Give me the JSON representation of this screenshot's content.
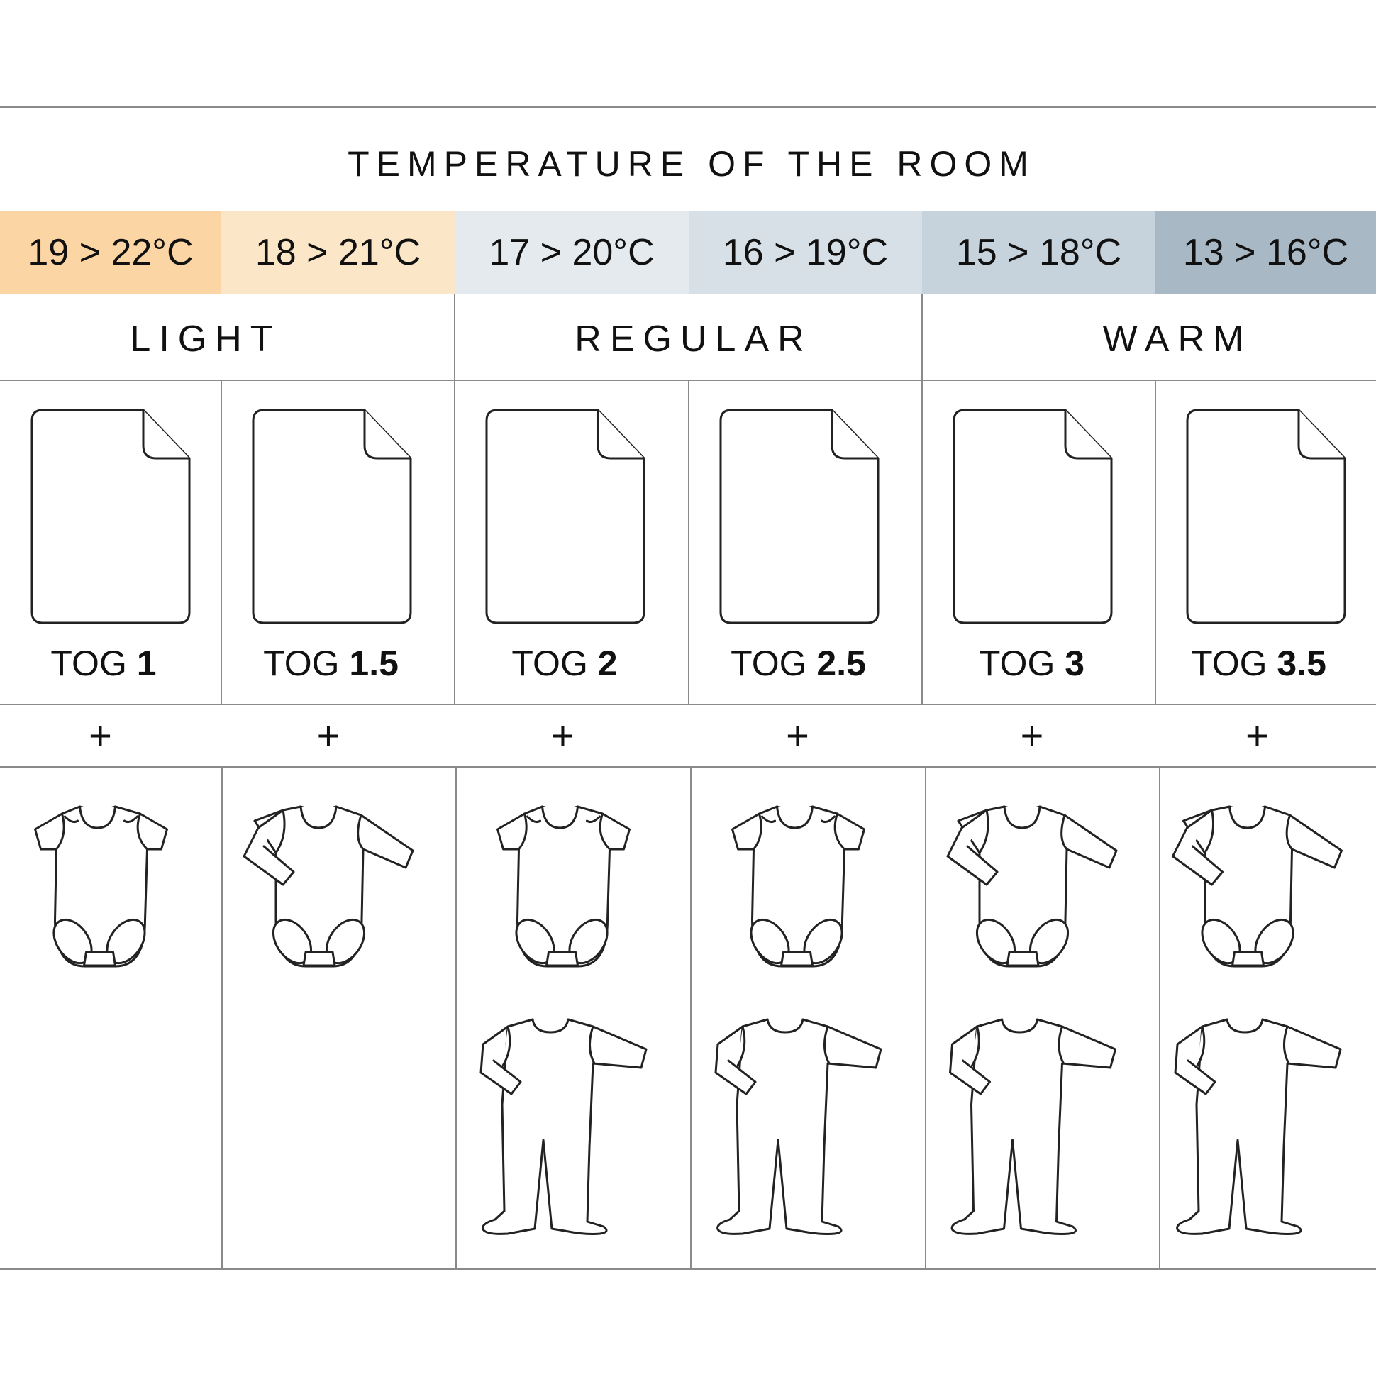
{
  "title": "TEMPERATURE OF THE ROOM",
  "temperature_bands": [
    {
      "label": "19 > 22°C",
      "color": "#fbd5a4"
    },
    {
      "label": "18 > 21°C",
      "color": "#fce6c8"
    },
    {
      "label": "17 > 20°C",
      "color": "#e5eaee"
    },
    {
      "label": "16 > 19°C",
      "color": "#d8e0e7"
    },
    {
      "label": "15 > 18°C",
      "color": "#c6d2dc"
    },
    {
      "label": "13 > 16°C",
      "color": "#a8b8c4"
    }
  ],
  "categories": [
    "LIGHT",
    "REGULAR",
    "WARM"
  ],
  "tog_prefix": "TOG",
  "tog_values": [
    "1",
    "1.5",
    "2",
    "2.5",
    "3",
    "3.5"
  ],
  "plus_sign": "+",
  "clothing": [
    [
      "short-sleeve-bodysuit-icon"
    ],
    [
      "long-sleeve-bodysuit-icon"
    ],
    [
      "short-sleeve-bodysuit-icon",
      "footed-sleepsuit-icon"
    ],
    [
      "short-sleeve-bodysuit-icon",
      "footed-sleepsuit-icon"
    ],
    [
      "long-sleeve-bodysuit-icon",
      "footed-sleepsuit-icon"
    ],
    [
      "long-sleeve-bodysuit-icon",
      "footed-sleepsuit-icon"
    ]
  ]
}
